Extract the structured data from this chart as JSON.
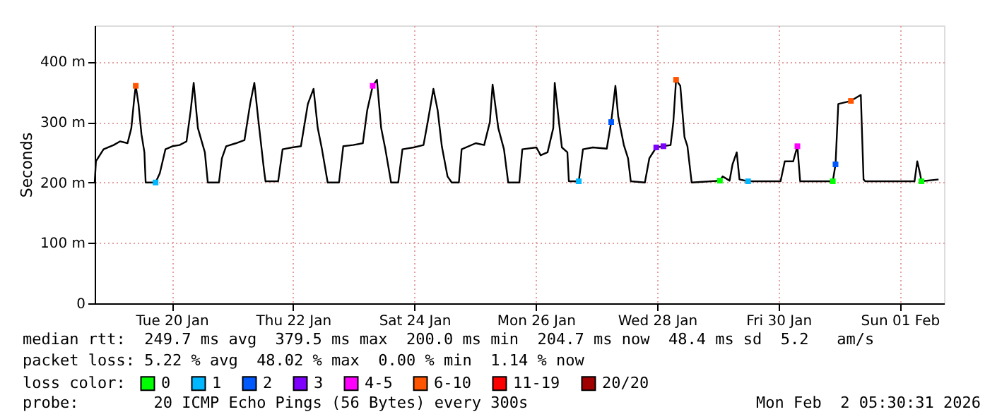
{
  "chart_data": {
    "type": "line",
    "ylabel": "Seconds",
    "xlim": [
      "2026-01-19T05:30",
      "2026-02-02T05:30"
    ],
    "xticks": [
      {
        "value": "2026-01-20T12:00",
        "label": "Tue 20 Jan"
      },
      {
        "value": "2026-01-22T12:00",
        "label": "Thu 22 Jan"
      },
      {
        "value": "2026-01-24T12:00",
        "label": "Sat 24 Jan"
      },
      {
        "value": "2026-01-26T12:00",
        "label": "Mon 26 Jan"
      },
      {
        "value": "2026-01-28T12:00",
        "label": "Wed 28 Jan"
      },
      {
        "value": "2026-01-30T12:00",
        "label": "Fri 30 Jan"
      },
      {
        "value": "2026-02-01T12:00",
        "label": "Sun 01 Feb"
      }
    ],
    "ylim": [
      0,
      460
    ],
    "yticks": [
      {
        "value": 0,
        "label": "0"
      },
      {
        "value": 100,
        "label": "100 m"
      },
      {
        "value": 200,
        "label": "200 m"
      },
      {
        "value": 300,
        "label": "300 m"
      },
      {
        "value": 400,
        "label": "400 m"
      }
    ],
    "grid": true,
    "legend": "bottom",
    "legend_title": "loss color:",
    "line_style": "solid",
    "series": [
      {
        "color": "#000000",
        "x": [
          "2026-01-19T05:30",
          "2026-01-19T06:00",
          "2026-01-19T09:00",
          "2026-01-19T13:00",
          "2026-01-19T15:30",
          "2026-01-19T18:30",
          "2026-01-19T20:00",
          "2026-01-19T21:10",
          "2026-01-19T21:45",
          "2026-01-19T22:50",
          "2026-01-20T00:00",
          "2026-01-20T01:10",
          "2026-01-20T01:40",
          "2026-01-20T05:35",
          "2026-01-20T07:15",
          "2026-01-20T09:30",
          "2026-01-20T12:15",
          "2026-01-20T15:05",
          "2026-01-20T17:50",
          "2026-01-20T19:30",
          "2026-01-20T20:40",
          "2026-01-20T22:20",
          "2026-01-21T01:05",
          "2026-01-21T02:15",
          "2026-01-21T06:40",
          "2026-01-21T07:50",
          "2026-01-21T09:30",
          "2026-01-21T13:25",
          "2026-01-21T16:45",
          "2026-01-21T19:00",
          "2026-01-21T20:40",
          "2026-01-21T22:20",
          "2026-01-22T00:30",
          "2026-01-22T01:05",
          "2026-01-22T06:05",
          "2026-01-22T07:50",
          "2026-01-22T11:40",
          "2026-01-22T15:05",
          "2026-01-22T17:50",
          "2026-01-22T20:05",
          "2026-01-22T21:45",
          "2026-01-22T23:25",
          "2026-01-23T01:40",
          "2026-01-23T06:10",
          "2026-01-23T07:50",
          "2026-01-23T11:40",
          "2026-01-23T15:35",
          "2026-01-23T17:20",
          "2026-01-23T19:30",
          "2026-01-23T21:10",
          "2026-01-23T22:50",
          "2026-01-24T00:30",
          "2026-01-24T02:45",
          "2026-01-24T05:35",
          "2026-01-24T07:15",
          "2026-01-24T11:40",
          "2026-01-24T15:35",
          "2026-01-24T17:15",
          "2026-01-24T19:30",
          "2026-01-24T21:10",
          "2026-01-24T22:50",
          "2026-01-25T01:05",
          "2026-01-25T02:45",
          "2026-01-25T05:35",
          "2026-01-25T06:40",
          "2026-01-25T12:15",
          "2026-01-25T15:35",
          "2026-01-25T17:50",
          "2026-01-25T18:55",
          "2026-01-25T21:10",
          "2026-01-25T23:25",
          "2026-01-26T01:05",
          "2026-01-26T05:30",
          "2026-01-26T06:40",
          "2026-01-26T12:15",
          "2026-01-26T13:55",
          "2026-01-26T16:40",
          "2026-01-26T18:55",
          "2026-01-26T19:30",
          "2026-01-26T21:10",
          "2026-01-26T22:20",
          "2026-01-27T00:30",
          "2026-01-27T01:05",
          "2026-01-27T05:00",
          "2026-01-27T06:40",
          "2026-01-27T10:35",
          "2026-01-27T16:05",
          "2026-01-27T17:50",
          "2026-01-27T19:30",
          "2026-01-27T20:35",
          "2026-01-27T22:50",
          "2026-01-28T00:30",
          "2026-01-28T01:35",
          "2026-01-28T07:10",
          "2026-01-28T08:55",
          "2026-01-28T11:40",
          "2026-01-28T14:30",
          "2026-01-28T17:20",
          "2026-01-28T18:25",
          "2026-01-28T19:30",
          "2026-01-28T21:10",
          "2026-01-28T22:50",
          "2026-01-29T00:00",
          "2026-01-29T01:40",
          "2026-01-29T12:50",
          "2026-01-29T13:55",
          "2026-01-29T16:40",
          "2026-01-29T17:50",
          "2026-01-29T19:30",
          "2026-01-29T20:35",
          "2026-01-30T00:00",
          "2026-01-30T12:50",
          "2026-01-30T14:30",
          "2026-01-30T17:50",
          "2026-01-30T19:30",
          "2026-01-30T20:35",
          "2026-01-31T09:30",
          "2026-01-31T10:35",
          "2026-01-31T11:40",
          "2026-01-31T16:40",
          "2026-01-31T20:35",
          "2026-01-31T21:40",
          "2026-01-31T22:20",
          "2026-02-01T17:50",
          "2026-02-01T18:55",
          "2026-02-01T20:00",
          "2026-02-01T20:35",
          "2026-02-02T03:20"
        ],
        "values": [
          200,
          235,
          255,
          262,
          268,
          265,
          290,
          340,
          360,
          330,
          280,
          250,
          200,
          200,
          215,
          255,
          260,
          262,
          268,
          320,
          365,
          290,
          250,
          200,
          200,
          240,
          260,
          265,
          270,
          330,
          365,
          300,
          220,
          202,
          202,
          255,
          258,
          260,
          330,
          355,
          290,
          255,
          200,
          200,
          260,
          262,
          265,
          320,
          360,
          370,
          290,
          255,
          200,
          200,
          255,
          258,
          262,
          300,
          355,
          320,
          260,
          210,
          200,
          200,
          255,
          265,
          262,
          300,
          362,
          290,
          255,
          200,
          200,
          255,
          258,
          245,
          250,
          290,
          365,
          300,
          258,
          250,
          202,
          202,
          255,
          258,
          256,
          300,
          360,
          310,
          262,
          240,
          202,
          200,
          240,
          258,
          260,
          262,
          300,
          370,
          360,
          275,
          260,
          200,
          203,
          210,
          203,
          230,
          250,
          205,
          202,
          202,
          235,
          235,
          260,
          202,
          202,
          230,
          330,
          335,
          345,
          205,
          202,
          202,
          235,
          215,
          202,
          205
        ]
      },
      {
        "type": "scatter",
        "marker": "square",
        "name": "0",
        "color": "#00ff00",
        "x": [
          "2026-01-29T12:50",
          "2026-01-31T09:30",
          "2026-02-01T20:35"
        ],
        "values": [
          203,
          202,
          202
        ]
      },
      {
        "type": "scatter",
        "marker": "square",
        "name": "1",
        "color": "#00b8ff",
        "x": [
          "2026-01-20T05:35",
          "2026-01-27T05:00",
          "2026-01-30T00:00"
        ],
        "values": [
          200,
          202,
          202
        ]
      },
      {
        "type": "scatter",
        "marker": "square",
        "name": "2",
        "color": "#0059ff",
        "x": [
          "2026-01-27T17:50",
          "2026-01-31T10:35"
        ],
        "values": [
          300,
          230
        ]
      },
      {
        "type": "scatter",
        "marker": "square",
        "name": "3",
        "color": "#7e00ff",
        "x": [
          "2026-01-28T11:40",
          "2026-01-28T14:30"
        ],
        "values": [
          258,
          260
        ]
      },
      {
        "type": "scatter",
        "marker": "square",
        "name": "4-5",
        "color": "#ff00ff",
        "x": [
          "2026-01-23T19:30",
          "2026-01-30T19:30"
        ],
        "values": [
          360,
          260
        ]
      },
      {
        "type": "scatter",
        "marker": "square",
        "name": "6-10",
        "color": "#ff5500",
        "x": [
          "2026-01-19T21:45",
          "2026-01-28T19:30",
          "2026-01-31T16:40"
        ],
        "values": [
          360,
          370,
          335
        ]
      },
      {
        "type": "scatter",
        "marker": "square",
        "name": "11-19",
        "color": "#ff0000"
      },
      {
        "type": "scatter",
        "marker": "square",
        "name": "20/20",
        "color": "#a10000"
      }
    ],
    "annotations": [
      "median rtt:  249.7 ms avg  379.5 ms max  200.0 ms min  204.7 ms now  48.4 ms sd  5.2   am/s",
      "packet loss: 5.22 % avg  48.02 % max  0.00 % min  1.14 % now",
      "probe:        20 ICMP Echo Pings (56 Bytes) every 300s",
      "Mon Feb  2 05:30:31 2026"
    ]
  }
}
